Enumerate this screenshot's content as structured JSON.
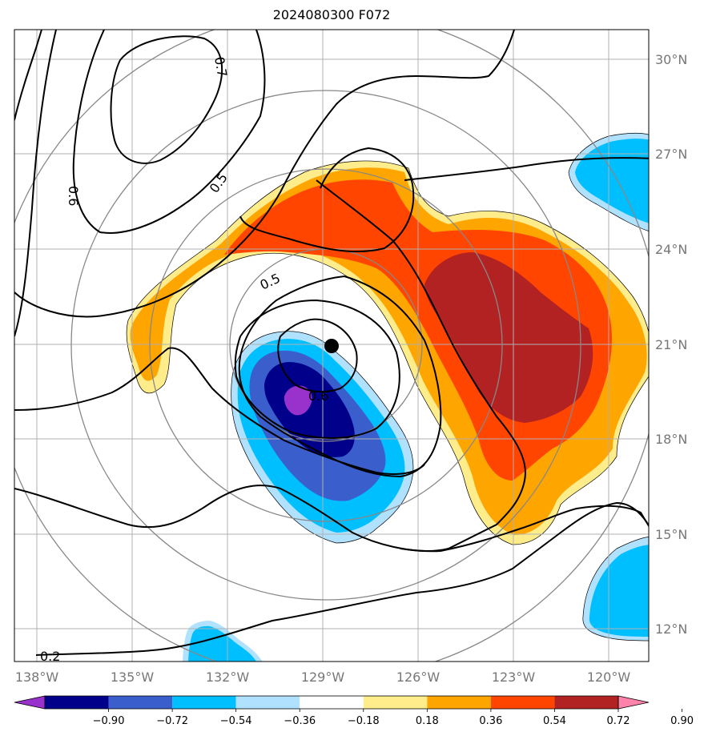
{
  "title": "2024080300 F072",
  "lat_ticks": [
    "30°N",
    "27°N",
    "24°N",
    "21°N",
    "18°N",
    "15°N",
    "12°N"
  ],
  "lon_ticks": [
    "138°W",
    "135°W",
    "132°W",
    "129°W",
    "126°W",
    "123°W",
    "120°W"
  ],
  "contour_labels": [
    "0.7",
    "0.6",
    "0.5",
    "0.5",
    "0.6",
    "0.2"
  ],
  "colorbar": {
    "ticks": [
      "−0.90",
      "−0.72",
      "−0.54",
      "−0.36",
      "−0.18",
      "0.18",
      "0.36",
      "0.54",
      "0.72",
      "0.90"
    ],
    "colors": [
      "#9932cc",
      "#00008b",
      "#3a5fcd",
      "#00bfff",
      "#b0e2ff",
      "#ffffff",
      "#ffec8b",
      "#ffa500",
      "#ff4500",
      "#b22222",
      "#ff82ab"
    ]
  },
  "storm_center": {
    "lon": "128.7°W",
    "lat": "20.9°N"
  }
}
